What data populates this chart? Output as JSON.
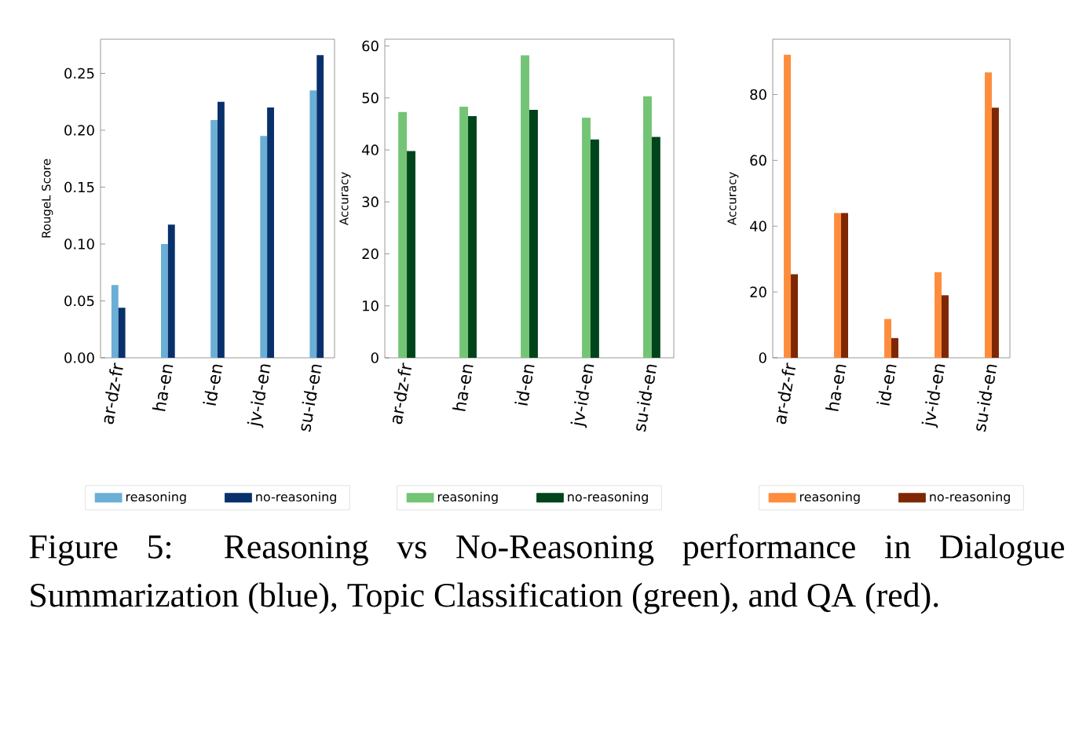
{
  "chart_data": [
    {
      "type": "bar",
      "ylabel": "RougeL Score",
      "categories": [
        "ar-dz-fr",
        "ha-en",
        "id-en",
        "jv-id-en",
        "su-id-en"
      ],
      "series": [
        {
          "name": "reasoning",
          "color": "#6baed6",
          "values": [
            0.064,
            0.1,
            0.209,
            0.195,
            0.235
          ]
        },
        {
          "name": "no-reasoning",
          "color": "#08306b",
          "values": [
            0.044,
            0.117,
            0.225,
            0.22,
            0.266
          ]
        }
      ],
      "ylim": [
        0,
        0.28
      ],
      "yticks": [
        {
          "value": 0,
          "label": "0.00"
        },
        {
          "value": 0.05,
          "label": "0.05"
        },
        {
          "value": 0.1,
          "label": "0.10"
        },
        {
          "value": 0.15,
          "label": "0.15"
        },
        {
          "value": 0.2,
          "label": "0.20"
        },
        {
          "value": 0.25,
          "label": "0.25"
        }
      ],
      "legend": "bottom",
      "annotations": [
        "Figure 5: Reasoning vs No-Reasoning performance in Dialogue Summarization (blue), Topic Classification (green), and QA (red)."
      ]
    },
    {
      "type": "bar",
      "ylabel": "Accuracy",
      "categories": [
        "ar-dz-fr",
        "ha-en",
        "id-en",
        "jv-id-en",
        "su-id-en"
      ],
      "series": [
        {
          "name": "reasoning",
          "color": "#74c476",
          "values": [
            47.3,
            48.3,
            58.2,
            46.2,
            50.3
          ]
        },
        {
          "name": "no-reasoning",
          "color": "#00441b",
          "values": [
            39.8,
            46.5,
            47.7,
            42.0,
            42.5
          ]
        }
      ],
      "ylim": [
        0,
        61.3
      ],
      "yticks": [
        0,
        10,
        20,
        30,
        40,
        50,
        60
      ],
      "legend": "bottom"
    },
    {
      "type": "bar",
      "ylabel": "Accuracy",
      "categories": [
        "ar-dz-fr",
        "ha-en",
        "id-en",
        "jv-id-en",
        "su-id-en"
      ],
      "series": [
        {
          "name": "reasoning",
          "color": "#fd8d3c",
          "values": [
            92.1,
            44,
            11.8,
            26,
            86.7
          ]
        },
        {
          "name": "no-reasoning",
          "color": "#7f2704",
          "values": [
            25.4,
            44,
            6,
            19,
            76.0
          ]
        }
      ],
      "ylim": [
        0,
        96.8
      ],
      "yticks": [
        0,
        20,
        40,
        60,
        80
      ],
      "legend": "bottom"
    }
  ]
}
